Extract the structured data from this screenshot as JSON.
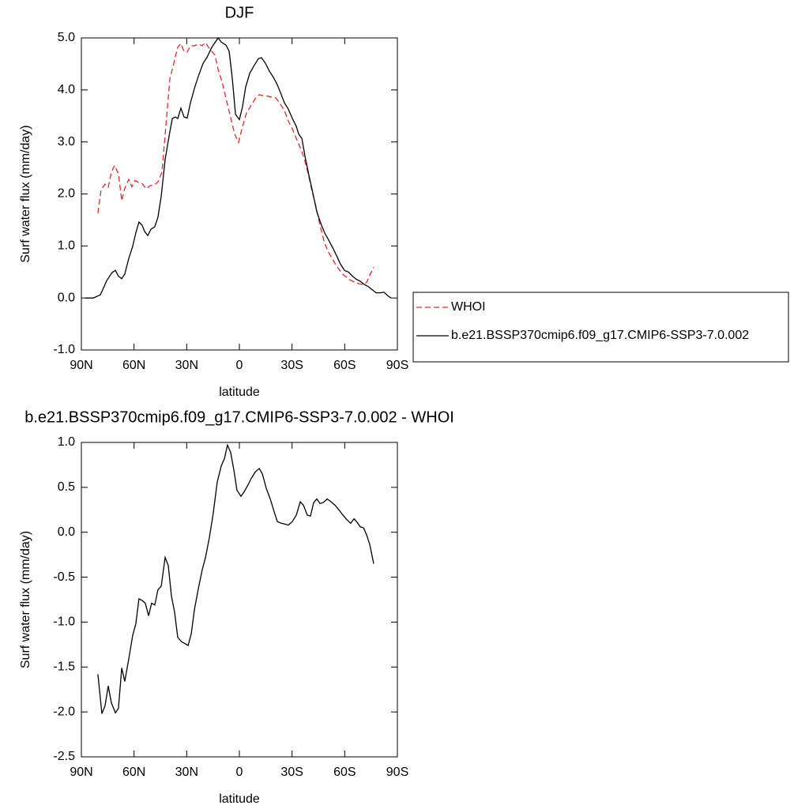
{
  "chart_data": [
    {
      "type": "line",
      "title": "DJF",
      "x_label": "latitude",
      "y_label": "Surf water flux (mm/day)",
      "xlim": [
        90,
        -90
      ],
      "xticks": [
        {
          "value": 90,
          "label": "90N"
        },
        {
          "value": 60,
          "label": "60N"
        },
        {
          "value": 30,
          "label": "30N"
        },
        0,
        {
          "value": -30,
          "label": "30S"
        },
        {
          "value": -60,
          "label": "60S"
        },
        {
          "value": -90,
          "label": "90S"
        }
      ],
      "ylim": [
        -1,
        5
      ],
      "yticks": [
        {
          "value": -1,
          "label": "-1.0"
        },
        {
          "value": 0,
          "label": "0.0"
        },
        {
          "value": 1,
          "label": "1.0"
        },
        {
          "value": 2,
          "label": "2.0"
        },
        {
          "value": 3,
          "label": "3.0"
        },
        {
          "value": 4,
          "label": "4.0"
        },
        {
          "value": 5,
          "label": "5.0"
        }
      ],
      "legend": "right",
      "series": [
        {
          "name": "WHOI",
          "color": "#e8262b",
          "dashed": true,
          "x": [
            80.6,
            78.8,
            76.5,
            74.7,
            72.9,
            71.1,
            68.9,
            67.0,
            65.3,
            63.0,
            61.2,
            59.4,
            57.2,
            55.4,
            53.1,
            50.9,
            48.6,
            46.4,
            44.1,
            41.9,
            39.6,
            37.4,
            35.1,
            33.3,
            31.5,
            29.7,
            27.9,
            25.6,
            23.4,
            21.2,
            19.3,
            17.6,
            15.7,
            13.9,
            12.1,
            9.9,
            7.6,
            5.4,
            2.7,
            0.5,
            -1.8,
            -4.1,
            -6.8,
            -9.0,
            -11.3,
            -13.5,
            -16.2,
            -18.5,
            -20.7,
            -22.9,
            -25.7,
            -27.9,
            -30.2,
            -32.4,
            -34.7,
            -36.9,
            -39.2,
            -41.4,
            -43.7,
            -45.9,
            -48.2,
            -50.4,
            -52.7,
            -54.9,
            -57.2,
            -59.4,
            -61.7,
            -63.9,
            -66.2,
            -68.4,
            -70.7,
            -72.5,
            -74.3,
            -76.5
          ],
          "values": [
            1.63,
            2.08,
            2.19,
            2.13,
            2.42,
            2.55,
            2.39,
            1.87,
            2.11,
            2.28,
            2.14,
            2.26,
            2.22,
            2.2,
            2.1,
            2.16,
            2.17,
            2.23,
            2.42,
            3.3,
            4.21,
            4.51,
            4.82,
            4.89,
            4.74,
            4.73,
            4.85,
            4.85,
            4.88,
            4.85,
            4.91,
            4.82,
            4.74,
            4.67,
            4.39,
            4.16,
            3.83,
            3.53,
            3.15,
            2.99,
            3.3,
            3.56,
            3.71,
            3.83,
            3.91,
            3.89,
            3.88,
            3.86,
            3.85,
            3.75,
            3.6,
            3.4,
            3.25,
            3.07,
            2.89,
            2.69,
            2.39,
            2.05,
            1.75,
            1.4,
            1.09,
            0.9,
            0.77,
            0.64,
            0.53,
            0.44,
            0.38,
            0.33,
            0.3,
            0.27,
            0.26,
            0.3,
            0.44,
            0.59
          ]
        },
        {
          "name": "b.e21.BSSP370cmip6.f09_g17.CMIP6-SSP3-7.0.002",
          "color": "#000000",
          "dashed": false,
          "x": [
            87.7,
            83.2,
            79.2,
            75.6,
            72.5,
            70.6,
            68.9,
            67.0,
            65.3,
            63.0,
            60.8,
            59.0,
            57.2,
            55.4,
            54.0,
            52.2,
            50.4,
            48.2,
            46.4,
            44.5,
            42.3,
            40.0,
            38.2,
            36.4,
            35.1,
            33.3,
            31.5,
            29.7,
            27.9,
            25.6,
            23.4,
            20.7,
            18.4,
            15.7,
            13.9,
            12.1,
            10.3,
            7.6,
            5.8,
            4.0,
            2.2,
            0.0,
            -1.8,
            -3.6,
            -5.9,
            -8.1,
            -10.8,
            -12.6,
            -14.9,
            -17.1,
            -19.4,
            -21.6,
            -23.4,
            -25.7,
            -27.9,
            -30.2,
            -32.4,
            -33.8,
            -35.6,
            -37.4,
            -39.6,
            -41.9,
            -44.1,
            -46.4,
            -48.6,
            -50.9,
            -53.1,
            -55.4,
            -57.6,
            -59.9,
            -62.1,
            -64.4,
            -66.6,
            -68.9,
            -71.1,
            -73.4,
            -75.6,
            -77.9,
            -80.1,
            -82.4,
            -84.6,
            -86.4
          ],
          "values": [
            0.0,
            0.0,
            0.06,
            0.33,
            0.49,
            0.53,
            0.42,
            0.37,
            0.46,
            0.76,
            0.99,
            1.25,
            1.46,
            1.4,
            1.28,
            1.2,
            1.32,
            1.37,
            1.55,
            1.96,
            2.66,
            3.12,
            3.45,
            3.48,
            3.45,
            3.65,
            3.48,
            3.46,
            3.75,
            4.03,
            4.26,
            4.51,
            4.63,
            4.82,
            4.91,
            5.0,
            4.92,
            4.86,
            4.74,
            4.21,
            3.53,
            3.43,
            3.68,
            4.06,
            4.32,
            4.45,
            4.6,
            4.62,
            4.51,
            4.36,
            4.24,
            4.1,
            3.95,
            3.75,
            3.63,
            3.45,
            3.3,
            3.15,
            3.07,
            2.72,
            2.36,
            2.01,
            1.66,
            1.43,
            1.25,
            1.11,
            0.97,
            0.81,
            0.65,
            0.53,
            0.5,
            0.42,
            0.36,
            0.32,
            0.26,
            0.22,
            0.16,
            0.1,
            0.1,
            0.11,
            0.04,
            0.0
          ]
        }
      ]
    },
    {
      "type": "line",
      "title": "b.e21.BSSP370cmip6.f09_g17.CMIP6-SSP3-7.0.002 - WHOI",
      "x_label": "latitude",
      "y_label": "Surf water flux (mm/day)",
      "xlim": [
        90,
        -90
      ],
      "xticks": [
        {
          "value": 90,
          "label": "90N"
        },
        {
          "value": 60,
          "label": "60N"
        },
        {
          "value": 30,
          "label": "30N"
        },
        0,
        {
          "value": -30,
          "label": "30S"
        },
        {
          "value": -60,
          "label": "60S"
        },
        {
          "value": -90,
          "label": "90S"
        }
      ],
      "ylim": [
        -2.5,
        1
      ],
      "yticks": [
        -2.5,
        {
          "value": -2,
          "label": "-2.0"
        },
        -1.5,
        {
          "value": -1,
          "label": "-1.0"
        },
        -0.5,
        {
          "value": 0,
          "label": "0.0"
        },
        0.5,
        {
          "value": 1,
          "label": "1.0"
        }
      ],
      "series": [
        {
          "color": "#000000",
          "dashed": false,
          "x": [
            80.6,
            78.3,
            76.5,
            74.7,
            72.9,
            70.6,
            68.9,
            67.0,
            65.3,
            63.0,
            60.8,
            59.0,
            57.2,
            55.4,
            53.6,
            51.7,
            50.0,
            48.2,
            46.4,
            44.5,
            42.3,
            40.5,
            38.7,
            36.9,
            35.1,
            32.9,
            31.0,
            29.2,
            27.4,
            25.6,
            23.4,
            21.2,
            19.3,
            17.1,
            14.9,
            12.6,
            10.3,
            8.5,
            6.8,
            5.0,
            3.2,
            1.4,
            -0.9,
            -2.7,
            -5.0,
            -6.8,
            -9.0,
            -11.3,
            -13.1,
            -15.3,
            -17.6,
            -19.8,
            -21.6,
            -23.9,
            -26.1,
            -27.9,
            -30.2,
            -32.4,
            -34.7,
            -36.5,
            -38.7,
            -40.5,
            -42.3,
            -44.1,
            -45.9,
            -47.7,
            -50.0,
            -52.2,
            -54.5,
            -56.7,
            -59.0,
            -61.2,
            -63.4,
            -65.3,
            -67.1,
            -68.9,
            -70.7,
            -72.5,
            -74.3,
            -76.5
          ],
          "values": [
            -1.58,
            -2.02,
            -1.93,
            -1.71,
            -1.9,
            -2.01,
            -1.96,
            -1.51,
            -1.66,
            -1.41,
            -1.15,
            -1.02,
            -0.74,
            -0.76,
            -0.79,
            -0.93,
            -0.79,
            -0.81,
            -0.64,
            -0.6,
            -0.28,
            -0.37,
            -0.71,
            -0.89,
            -1.17,
            -1.22,
            -1.24,
            -1.26,
            -1.13,
            -0.86,
            -0.63,
            -0.42,
            -0.28,
            -0.06,
            0.21,
            0.56,
            0.74,
            0.82,
            0.97,
            0.89,
            0.7,
            0.47,
            0.4,
            0.45,
            0.53,
            0.6,
            0.67,
            0.71,
            0.65,
            0.49,
            0.37,
            0.23,
            0.12,
            0.1,
            0.09,
            0.08,
            0.12,
            0.19,
            0.34,
            0.3,
            0.19,
            0.18,
            0.33,
            0.37,
            0.32,
            0.33,
            0.37,
            0.34,
            0.3,
            0.25,
            0.19,
            0.14,
            0.1,
            0.15,
            0.11,
            0.06,
            0.05,
            -0.03,
            -0.14,
            -0.35
          ]
        }
      ]
    }
  ]
}
